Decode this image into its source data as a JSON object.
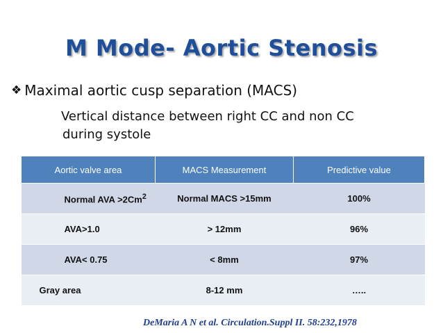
{
  "title": "M Mode- Aortic Stenosis",
  "bullet": {
    "icon": "diamond-bullet-icon",
    "text": "Maximal aortic cusp separation (MACS)"
  },
  "subtext": {
    "line1": "Vertical distance between right CC and non CC",
    "line2": "during systole"
  },
  "table": {
    "headers": [
      "Aortic valve area",
      "MACS Measurement",
      "Predictive value"
    ],
    "rows": [
      {
        "area": "Normal AVA   >2Cm",
        "area_sup": "2",
        "macs": "Normal MACS >15mm",
        "pred": "100%"
      },
      {
        "area": "AVA>1.0",
        "macs": "> 12mm",
        "pred": "96%"
      },
      {
        "area": "AVA< 0.75",
        "macs": "< 8mm",
        "pred": "97%"
      },
      {
        "area": "Gray area",
        "macs": "8-12 mm",
        "pred": "….."
      }
    ]
  },
  "citation": "DeMaria A N et al. Circulation.Suppl II. 58:232,1978",
  "colors": {
    "title": "#1f4e9a",
    "header_bg": "#4f81bd",
    "row_dark": "#d0d8e8",
    "row_light": "#e9edf4"
  }
}
